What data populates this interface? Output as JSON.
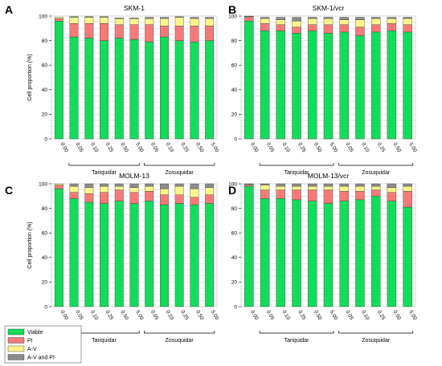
{
  "figure": {
    "legend": [
      {
        "key": "viable",
        "label": "Viable",
        "color": "#12dc5a"
      },
      {
        "key": "pi",
        "label": "PI",
        "color": "#f47a7a"
      },
      {
        "key": "av",
        "label": "A-V",
        "color": "#fbf48a"
      },
      {
        "key": "avpi",
        "label": "A-V and PI",
        "color": "#8c8c8c"
      }
    ]
  },
  "chart_data": [
    {
      "panel": "A",
      "type": "bar",
      "stacked": true,
      "title": "SKM-1",
      "ylabel": "Cell proportion (%)",
      "ylim": [
        0,
        100
      ],
      "yticks": [
        0,
        20,
        40,
        60,
        80,
        100
      ],
      "grid": true,
      "categories": [
        "0.00",
        "0.05",
        "0.10",
        "0.25",
        "0.50",
        "5.00",
        "0.05",
        "0.10",
        "0.25",
        "0.50",
        "5.00"
      ],
      "groups": [
        {
          "label": "Tariquidar",
          "from": 1,
          "to": 5
        },
        {
          "label": "Zosuquidar",
          "from": 6,
          "to": 10
        }
      ],
      "series": [
        {
          "name": "Viable",
          "values": [
            96,
            83,
            82,
            80,
            82,
            81,
            79,
            83,
            80,
            79,
            80
          ]
        },
        {
          "name": "PI",
          "values": [
            2,
            11,
            12,
            14,
            11,
            12,
            14,
            9,
            12,
            13,
            12
          ]
        },
        {
          "name": "A-V",
          "values": [
            1,
            5,
            5,
            5,
            5,
            5,
            5,
            6,
            7,
            6,
            6
          ]
        },
        {
          "name": "A-V and PI",
          "values": [
            0,
            0.5,
            0.5,
            0.5,
            0.5,
            0.5,
            1,
            1,
            0.5,
            1,
            1
          ]
        }
      ]
    },
    {
      "panel": "B",
      "type": "bar",
      "stacked": true,
      "title": "SKM-1/vcr",
      "ylabel": "",
      "ylim": [
        0,
        100
      ],
      "yticks": [
        0,
        20,
        40,
        60,
        80,
        100
      ],
      "grid": true,
      "categories": [
        "0.00",
        "0.05",
        "0.10",
        "0.25",
        "0.50",
        "5.00",
        "0.05",
        "0.10",
        "0.25",
        "0.50",
        "5.00"
      ],
      "groups": [
        {
          "label": "Tariquidar",
          "from": 1,
          "to": 5
        },
        {
          "label": "Zosuquidar",
          "from": 6,
          "to": 10
        }
      ],
      "series": [
        {
          "name": "Viable",
          "values": [
            96,
            88,
            88,
            86,
            88,
            86,
            87,
            84,
            87,
            88,
            87
          ]
        },
        {
          "name": "PI",
          "values": [
            3,
            6,
            5,
            5,
            5,
            7,
            6,
            7,
            6,
            6,
            6
          ]
        },
        {
          "name": "A-V",
          "values": [
            0.5,
            4,
            4,
            5,
            5,
            5,
            4,
            6,
            5,
            4,
            5
          ]
        },
        {
          "name": "A-V and PI",
          "values": [
            0.5,
            1,
            2,
            3,
            1,
            1,
            2,
            2,
            1,
            1,
            1
          ]
        }
      ]
    },
    {
      "panel": "C",
      "type": "bar",
      "stacked": true,
      "title": "MOLM-13",
      "ylabel": "Cell proportion (%)",
      "ylim": [
        0,
        100
      ],
      "yticks": [
        0,
        20,
        40,
        60,
        80,
        100
      ],
      "grid": true,
      "categories": [
        "0.00",
        "0.05",
        "0.10",
        "0.25",
        "0.50",
        "5.00",
        "0.05",
        "0.10",
        "0.25",
        "0.50",
        "5.00"
      ],
      "groups": [
        {
          "label": "Tariquidar",
          "from": 1,
          "to": 5
        },
        {
          "label": "Zosuquidar",
          "from": 6,
          "to": 10
        }
      ],
      "series": [
        {
          "name": "Viable",
          "values": [
            96,
            88,
            85,
            84,
            86,
            84,
            86,
            83,
            84,
            83,
            84
          ]
        },
        {
          "name": "PI",
          "values": [
            3,
            5,
            7,
            9,
            9,
            9,
            8,
            8,
            7,
            6,
            7
          ]
        },
        {
          "name": "A-V",
          "values": [
            1,
            5,
            5,
            5,
            3,
            4,
            4,
            5,
            7,
            7,
            6
          ]
        },
        {
          "name": "A-V and PI",
          "values": [
            0,
            2,
            3,
            2,
            2,
            3,
            2,
            4,
            2,
            4,
            3
          ]
        }
      ]
    },
    {
      "panel": "D",
      "type": "bar",
      "stacked": true,
      "title": "MOLM-13/vcr",
      "ylabel": "",
      "ylim": [
        0,
        100
      ],
      "yticks": [
        0,
        20,
        40,
        60,
        80,
        100
      ],
      "grid": true,
      "categories": [
        "0.00",
        "0.05",
        "0.10",
        "0.25",
        "0.50",
        "5.00",
        "0.05",
        "0.10",
        "0.25",
        "0.50",
        "5.00"
      ],
      "groups": [
        {
          "label": "Tariquidar",
          "from": 1,
          "to": 5
        },
        {
          "label": "Zosuquidar",
          "from": 6,
          "to": 10
        }
      ],
      "series": [
        {
          "name": "Viable",
          "values": [
            98,
            88,
            88,
            87,
            86,
            84,
            86,
            87,
            90,
            86,
            81
          ]
        },
        {
          "name": "PI",
          "values": [
            1,
            7,
            7,
            8,
            9,
            11,
            8,
            7,
            5,
            7,
            13
          ]
        },
        {
          "name": "A-V",
          "values": [
            0.5,
            4,
            3,
            3,
            3,
            3,
            4,
            4,
            3,
            4,
            4
          ]
        },
        {
          "name": "A-V and PI",
          "values": [
            0.5,
            1,
            2,
            2,
            2,
            2,
            2,
            2,
            2,
            3,
            2
          ]
        }
      ]
    }
  ]
}
